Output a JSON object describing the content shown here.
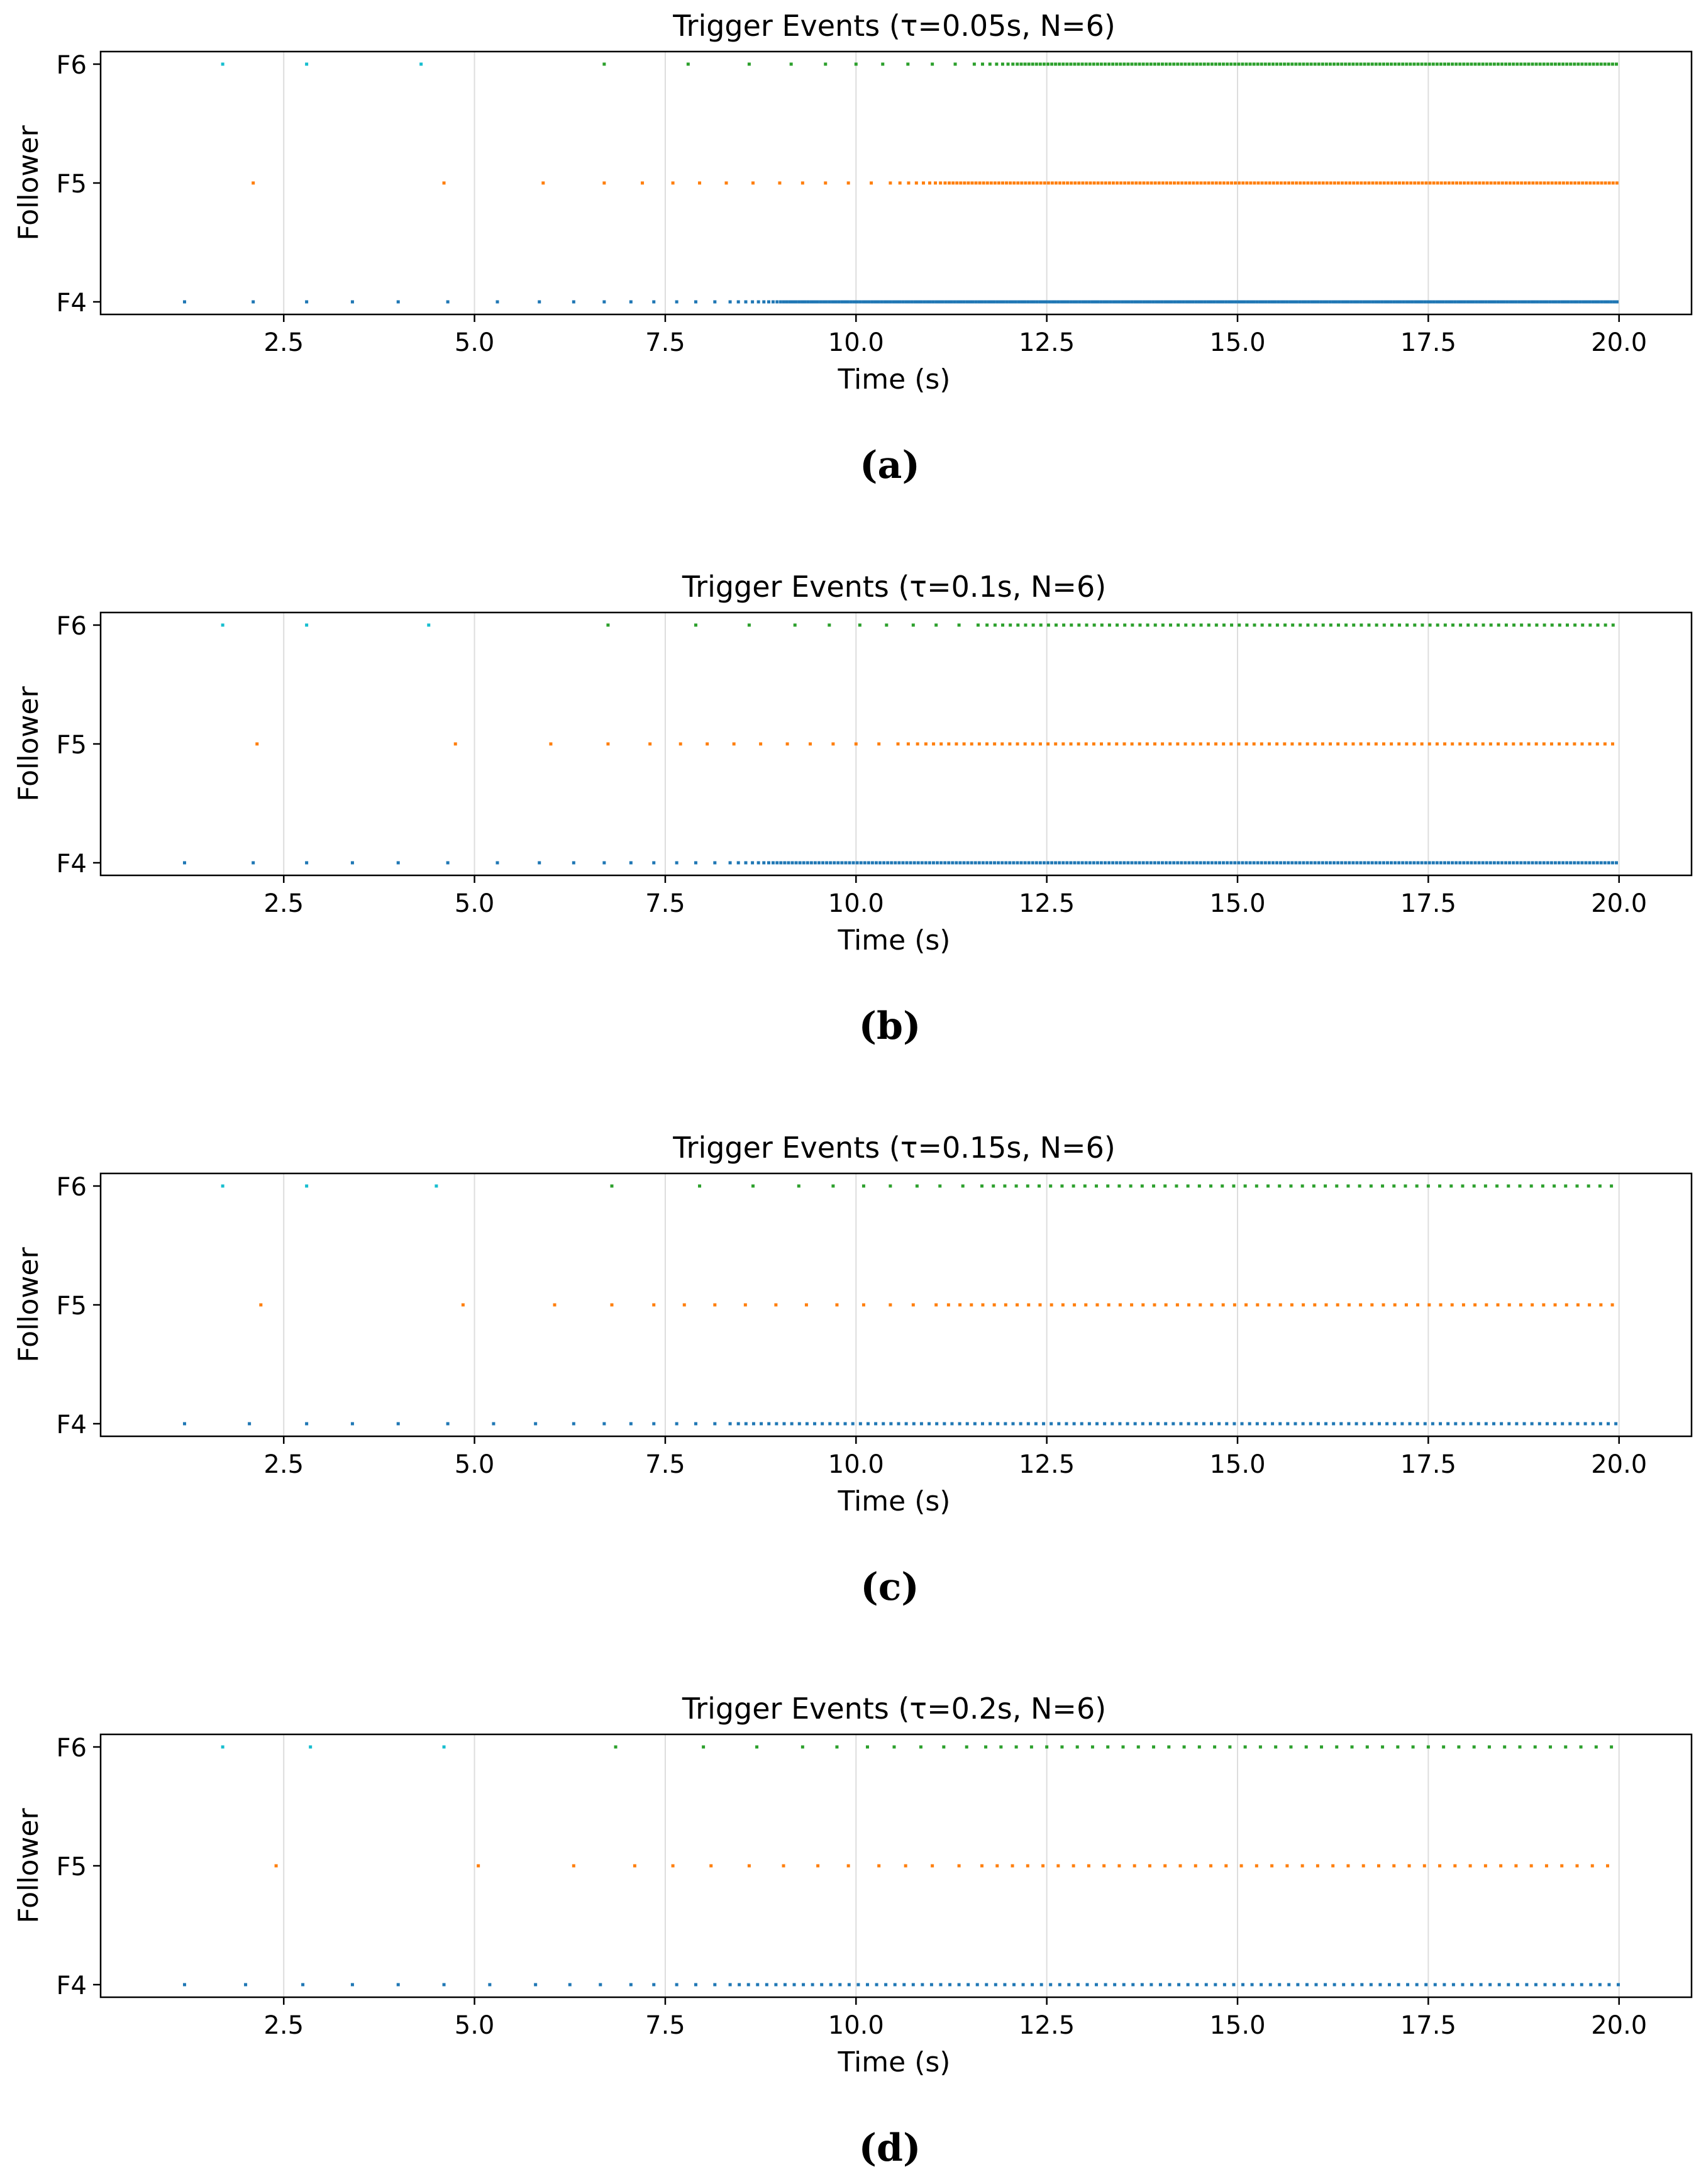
{
  "colors": {
    "F4": "#1f77b4",
    "F5": "#ff7f0e",
    "F6": "#2ca02c",
    "F6_early": "#17becf",
    "grid": "#dddddd",
    "axis": "#000000"
  },
  "chart_data": [
    {
      "type": "scatter",
      "title": "Trigger Events (τ=0.05s, N=6)",
      "xlabel": "Time (s)",
      "ylabel": "Follower",
      "caption": "(a)",
      "xlim": [
        0.1,
        20.95
      ],
      "xticks": [
        2.5,
        5.0,
        7.5,
        10.0,
        12.5,
        15.0,
        17.5,
        20.0
      ],
      "xtick_labels": [
        "2.5",
        "5.0",
        "7.5",
        "10.0",
        "12.5",
        "15.0",
        "17.5",
        "20.0"
      ],
      "y_categories": [
        "F4",
        "F5",
        "F6"
      ],
      "grid": "vertical",
      "legend": "none",
      "series": [
        {
          "category": "F6",
          "sparse_times": [
            1.7,
            2.8,
            4.3,
            6.7,
            7.8,
            8.6,
            9.15,
            9.6,
            10.0,
            10.35,
            10.68,
            11.0,
            11.3
          ],
          "dense_from": 11.55,
          "dense_to": 20.0,
          "dense_start_step": 0.12,
          "dense_min_step": 0.05
        },
        {
          "category": "F5",
          "sparse_times": [
            2.1,
            4.6,
            5.9,
            6.7,
            7.2,
            7.6,
            7.95,
            8.3,
            8.65,
            9.0,
            9.3,
            9.6,
            9.9,
            10.2
          ],
          "dense_from": 10.45,
          "dense_to": 20.0,
          "dense_start_step": 0.14,
          "dense_min_step": 0.05
        },
        {
          "category": "F4",
          "sparse_times": [
            1.2,
            2.1,
            2.8,
            3.4,
            4.0,
            4.65,
            5.3,
            5.85,
            6.3,
            6.7,
            7.05,
            7.35,
            7.65,
            7.9,
            8.15
          ],
          "dense_from": 8.35,
          "dense_to": 20.0,
          "dense_start_step": 0.12,
          "dense_min_step": 0.04
        }
      ]
    },
    {
      "type": "scatter",
      "title": "Trigger Events (τ=0.1s, N=6)",
      "xlabel": "Time (s)",
      "ylabel": "Follower",
      "caption": "(b)",
      "xlim": [
        0.1,
        20.95
      ],
      "xticks": [
        2.5,
        5.0,
        7.5,
        10.0,
        12.5,
        15.0,
        17.5,
        20.0
      ],
      "xtick_labels": [
        "2.5",
        "5.0",
        "7.5",
        "10.0",
        "12.5",
        "15.0",
        "17.5",
        "20.0"
      ],
      "y_categories": [
        "F4",
        "F5",
        "F6"
      ],
      "grid": "vertical",
      "legend": "none",
      "series": [
        {
          "category": "F6",
          "sparse_times": [
            1.7,
            2.8,
            4.4,
            6.75,
            7.9,
            8.6,
            9.2,
            9.65,
            10.05,
            10.4,
            10.75,
            11.05,
            11.35
          ],
          "dense_from": 11.6,
          "dense_to": 20.0,
          "dense_start_step": 0.13,
          "dense_min_step": 0.1
        },
        {
          "category": "F5",
          "sparse_times": [
            2.15,
            4.75,
            6.0,
            6.75,
            7.3,
            7.7,
            8.05,
            8.4,
            8.75,
            9.1,
            9.4,
            9.7,
            10.0,
            10.3
          ],
          "dense_from": 10.55,
          "dense_to": 20.0,
          "dense_start_step": 0.15,
          "dense_min_step": 0.1
        },
        {
          "category": "F4",
          "sparse_times": [
            1.2,
            2.1,
            2.8,
            3.4,
            4.0,
            4.65,
            5.3,
            5.85,
            6.3,
            6.7,
            7.05,
            7.35,
            7.65,
            7.9,
            8.15
          ],
          "dense_from": 8.35,
          "dense_to": 20.0,
          "dense_start_step": 0.12,
          "dense_min_step": 0.05
        }
      ]
    },
    {
      "type": "scatter",
      "title": "Trigger Events (τ=0.15s, N=6)",
      "xlabel": "Time (s)",
      "ylabel": "Follower",
      "caption": "(c)",
      "xlim": [
        0.1,
        20.95
      ],
      "xticks": [
        2.5,
        5.0,
        7.5,
        10.0,
        12.5,
        15.0,
        17.5,
        20.0
      ],
      "xtick_labels": [
        "2.5",
        "5.0",
        "7.5",
        "10.0",
        "12.5",
        "15.0",
        "17.5",
        "20.0"
      ],
      "y_categories": [
        "F4",
        "F5",
        "F6"
      ],
      "grid": "vertical",
      "legend": "none",
      "series": [
        {
          "category": "F6",
          "sparse_times": [
            1.7,
            2.8,
            4.5,
            6.8,
            7.95,
            8.65,
            9.25,
            9.7,
            10.1,
            10.45,
            10.8,
            11.1,
            11.4
          ],
          "dense_from": 11.65,
          "dense_to": 20.0,
          "dense_start_step": 0.15,
          "dense_min_step": 0.15
        },
        {
          "category": "F5",
          "sparse_times": [
            2.2,
            4.85,
            6.05,
            6.8,
            7.35,
            7.75,
            8.15,
            8.55,
            8.95,
            9.35,
            9.75,
            10.1,
            10.45,
            10.75
          ],
          "dense_from": 11.05,
          "dense_to": 20.0,
          "dense_start_step": 0.18,
          "dense_min_step": 0.15
        },
        {
          "category": "F4",
          "sparse_times": [
            1.2,
            2.05,
            2.8,
            3.4,
            4.0,
            4.65,
            5.25,
            5.8,
            6.3,
            6.7,
            7.05,
            7.35,
            7.65,
            7.9,
            8.15
          ],
          "dense_from": 8.35,
          "dense_to": 20.0,
          "dense_start_step": 0.12,
          "dense_min_step": 0.1
        }
      ]
    },
    {
      "type": "scatter",
      "title": "Trigger Events (τ=0.2s, N=6)",
      "xlabel": "Time (s)",
      "ylabel": "Follower",
      "caption": "(d)",
      "xlim": [
        0.1,
        20.95
      ],
      "xticks": [
        2.5,
        5.0,
        7.5,
        10.0,
        12.5,
        15.0,
        17.5,
        20.0
      ],
      "xtick_labels": [
        "2.5",
        "5.0",
        "7.5",
        "10.0",
        "12.5",
        "15.0",
        "17.5",
        "20.0"
      ],
      "y_categories": [
        "F4",
        "F5",
        "F6"
      ],
      "grid": "vertical",
      "legend": "none",
      "series": [
        {
          "category": "F6",
          "sparse_times": [
            1.7,
            2.85,
            4.6,
            6.85,
            8.0,
            8.7,
            9.3,
            9.75,
            10.15,
            10.5,
            10.85,
            11.15,
            11.45
          ],
          "dense_from": 11.7,
          "dense_to": 20.0,
          "dense_start_step": 0.2,
          "dense_min_step": 0.2
        },
        {
          "category": "F5",
          "sparse_times": [
            2.4,
            5.05,
            6.3,
            7.1,
            7.6,
            8.1,
            8.6,
            9.05,
            9.5,
            9.9,
            10.3,
            10.65,
            11.0,
            11.35
          ],
          "dense_from": 11.65,
          "dense_to": 20.0,
          "dense_start_step": 0.22,
          "dense_min_step": 0.2
        },
        {
          "category": "F4",
          "sparse_times": [
            1.2,
            2.0,
            2.75,
            3.4,
            4.0,
            4.6,
            5.2,
            5.8,
            6.25,
            6.65,
            7.05,
            7.35,
            7.65,
            7.9,
            8.15
          ],
          "dense_from": 8.35,
          "dense_to": 20.0,
          "dense_start_step": 0.12,
          "dense_min_step": 0.12
        }
      ]
    }
  ]
}
